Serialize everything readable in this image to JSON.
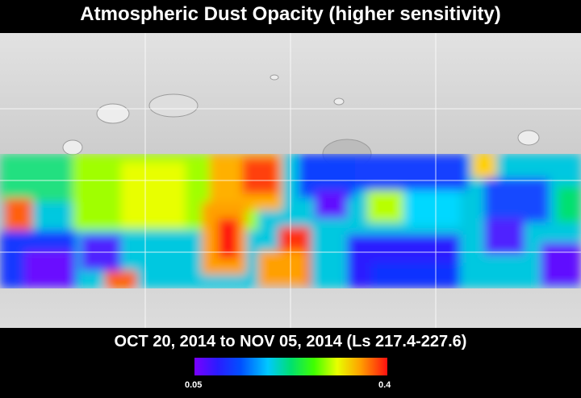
{
  "title": "Atmospheric Dust Opacity (higher sensitivity)",
  "date_range": "OCT 20, 2014 to NOV 05, 2014 (Ls 217.4-227.6)",
  "colorbar": {
    "min_label": "0.05",
    "max_label": "0.4",
    "range": [
      0.05,
      0.4
    ],
    "colors": [
      "#7a00ff",
      "#2a1cff",
      "#0050ff",
      "#00c8ff",
      "#00e070",
      "#40ff00",
      "#e8ff00",
      "#ffa000",
      "#ff1010"
    ]
  },
  "map": {
    "basemap": "shaded-relief",
    "gridlines": true
  }
}
